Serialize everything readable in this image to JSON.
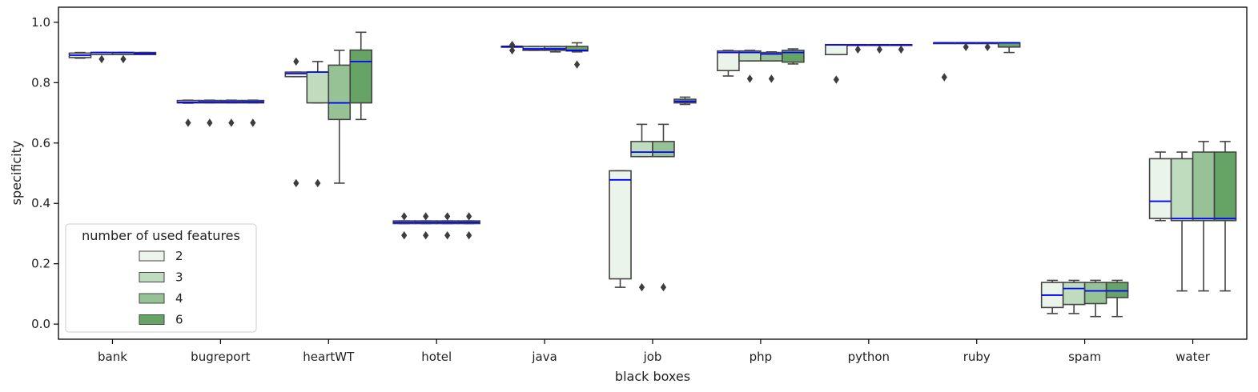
{
  "chart_data": {
    "type": "box",
    "xlabel": "black boxes",
    "ylabel": "specificity",
    "ylim": [
      -0.05,
      1.05
    ],
    "yticks": [
      "0.0",
      "0.2",
      "0.4",
      "0.6",
      "0.8",
      "1.0"
    ],
    "categories": [
      "bank",
      "bugreport",
      "heartWT",
      "hotel",
      "java",
      "job",
      "php",
      "python",
      "ruby",
      "spam",
      "water"
    ],
    "legend": {
      "title": "number of used features",
      "placement": "bottom-left",
      "entries": [
        "2",
        "3",
        "4",
        "6"
      ]
    },
    "colors": {
      "series": [
        "#ebf4eb",
        "#bfdcbf",
        "#96c296",
        "#66a466"
      ],
      "median": "#0000ff",
      "box_edge": "#444444"
    },
    "series": [
      {
        "name": "2",
        "boxes": [
          {
            "wlo": 0.881,
            "q1": 0.883,
            "med": 0.891,
            "q3": 0.898,
            "whi": 0.9,
            "outliers": []
          },
          {
            "wlo": 0.732,
            "q1": 0.733,
            "med": 0.735,
            "q3": 0.741,
            "whi": 0.742,
            "outliers": [
              0.667
            ]
          },
          {
            "wlo": 0.82,
            "q1": 0.82,
            "med": 0.83,
            "q3": 0.835,
            "whi": 0.835,
            "outliers": [
              0.87,
              0.467
            ]
          },
          {
            "wlo": 0.333,
            "q1": 0.333,
            "med": 0.337,
            "q3": 0.342,
            "whi": 0.342,
            "outliers": [
              0.357,
              0.294
            ]
          },
          {
            "wlo": 0.92,
            "q1": 0.92,
            "med": 0.92,
            "q3": 0.92,
            "whi": 0.92,
            "outliers": [
              0.925,
              0.907
            ]
          },
          {
            "wlo": 0.122,
            "q1": 0.15,
            "med": 0.478,
            "q3": 0.508,
            "whi": 0.508,
            "outliers": []
          },
          {
            "wlo": 0.822,
            "q1": 0.84,
            "med": 0.9,
            "q3": 0.905,
            "whi": 0.907,
            "outliers": []
          },
          {
            "wlo": 0.893,
            "q1": 0.893,
            "med": 0.925,
            "q3": 0.926,
            "whi": 0.926,
            "outliers": [
              0.81
            ]
          },
          {
            "wlo": 0.932,
            "q1": 0.932,
            "med": 0.932,
            "q3": 0.932,
            "whi": 0.932,
            "outliers": [
              0.818
            ]
          },
          {
            "wlo": 0.035,
            "q1": 0.055,
            "med": 0.096,
            "q3": 0.138,
            "whi": 0.145,
            "outliers": []
          },
          {
            "wlo": 0.343,
            "q1": 0.35,
            "med": 0.407,
            "q3": 0.548,
            "whi": 0.57,
            "outliers": []
          }
        ]
      },
      {
        "name": "3",
        "boxes": [
          {
            "wlo": 0.893,
            "q1": 0.893,
            "med": 0.9,
            "q3": 0.9,
            "whi": 0.9,
            "outliers": [
              0.878
            ]
          },
          {
            "wlo": 0.733,
            "q1": 0.733,
            "med": 0.736,
            "q3": 0.741,
            "whi": 0.742,
            "outliers": [
              0.667
            ]
          },
          {
            "wlo": 0.733,
            "q1": 0.733,
            "med": 0.835,
            "q3": 0.835,
            "whi": 0.87,
            "outliers": [
              0.467
            ]
          },
          {
            "wlo": 0.333,
            "q1": 0.333,
            "med": 0.337,
            "q3": 0.342,
            "whi": 0.342,
            "outliers": [
              0.357,
              0.294
            ]
          },
          {
            "wlo": 0.907,
            "q1": 0.907,
            "med": 0.912,
            "q3": 0.92,
            "whi": 0.92,
            "outliers": []
          },
          {
            "wlo": 0.555,
            "q1": 0.555,
            "med": 0.57,
            "q3": 0.605,
            "whi": 0.662,
            "outliers": [
              0.122
            ]
          },
          {
            "wlo": 0.872,
            "q1": 0.872,
            "med": 0.9,
            "q3": 0.905,
            "whi": 0.907,
            "outliers": [
              0.813
            ]
          },
          {
            "wlo": 0.925,
            "q1": 0.925,
            "med": 0.925,
            "q3": 0.926,
            "whi": 0.926,
            "outliers": [
              0.91
            ]
          },
          {
            "wlo": 0.932,
            "q1": 0.932,
            "med": 0.932,
            "q3": 0.932,
            "whi": 0.932,
            "outliers": [
              0.918
            ]
          },
          {
            "wlo": 0.035,
            "q1": 0.065,
            "med": 0.118,
            "q3": 0.138,
            "whi": 0.145,
            "outliers": []
          },
          {
            "wlo": 0.11,
            "q1": 0.343,
            "med": 0.35,
            "q3": 0.548,
            "whi": 0.57,
            "outliers": []
          }
        ]
      },
      {
        "name": "4",
        "boxes": [
          {
            "wlo": 0.893,
            "q1": 0.893,
            "med": 0.9,
            "q3": 0.9,
            "whi": 0.9,
            "outliers": [
              0.878
            ]
          },
          {
            "wlo": 0.733,
            "q1": 0.733,
            "med": 0.736,
            "q3": 0.741,
            "whi": 0.742,
            "outliers": [
              0.667
            ]
          },
          {
            "wlo": 0.467,
            "q1": 0.678,
            "med": 0.733,
            "q3": 0.858,
            "whi": 0.907,
            "outliers": []
          },
          {
            "wlo": 0.333,
            "q1": 0.333,
            "med": 0.337,
            "q3": 0.342,
            "whi": 0.342,
            "outliers": [
              0.357,
              0.294
            ]
          },
          {
            "wlo": 0.902,
            "q1": 0.907,
            "med": 0.912,
            "q3": 0.92,
            "whi": 0.92,
            "outliers": []
          },
          {
            "wlo": 0.555,
            "q1": 0.555,
            "med": 0.57,
            "q3": 0.605,
            "whi": 0.662,
            "outliers": [
              0.122
            ]
          },
          {
            "wlo": 0.872,
            "q1": 0.872,
            "med": 0.895,
            "q3": 0.9,
            "whi": 0.902,
            "outliers": [
              0.813
            ]
          },
          {
            "wlo": 0.925,
            "q1": 0.925,
            "med": 0.925,
            "q3": 0.926,
            "whi": 0.926,
            "outliers": [
              0.91
            ]
          },
          {
            "wlo": 0.932,
            "q1": 0.932,
            "med": 0.932,
            "q3": 0.932,
            "whi": 0.932,
            "outliers": [
              0.918
            ]
          },
          {
            "wlo": 0.025,
            "q1": 0.068,
            "med": 0.11,
            "q3": 0.138,
            "whi": 0.145,
            "outliers": []
          },
          {
            "wlo": 0.11,
            "q1": 0.343,
            "med": 0.35,
            "q3": 0.57,
            "whi": 0.605,
            "outliers": []
          }
        ]
      },
      {
        "name": "6",
        "boxes": [
          {
            "wlo": 0.893,
            "q1": 0.893,
            "med": 0.897,
            "q3": 0.9,
            "whi": 0.9,
            "outliers": []
          },
          {
            "wlo": 0.733,
            "q1": 0.733,
            "med": 0.736,
            "q3": 0.741,
            "whi": 0.742,
            "outliers": [
              0.667
            ]
          },
          {
            "wlo": 0.678,
            "q1": 0.733,
            "med": 0.87,
            "q3": 0.908,
            "whi": 0.967,
            "outliers": []
          },
          {
            "wlo": 0.333,
            "q1": 0.333,
            "med": 0.337,
            "q3": 0.342,
            "whi": 0.342,
            "outliers": [
              0.357,
              0.294
            ]
          },
          {
            "wlo": 0.902,
            "q1": 0.905,
            "med": 0.907,
            "q3": 0.92,
            "whi": 0.932,
            "outliers": [
              0.86
            ]
          },
          {
            "wlo": 0.728,
            "q1": 0.733,
            "med": 0.738,
            "q3": 0.745,
            "whi": 0.752,
            "outliers": []
          },
          {
            "wlo": 0.862,
            "q1": 0.868,
            "med": 0.9,
            "q3": 0.907,
            "whi": 0.912,
            "outliers": []
          },
          {
            "wlo": 0.925,
            "q1": 0.925,
            "med": 0.925,
            "q3": 0.926,
            "whi": 0.926,
            "outliers": [
              0.91
            ]
          },
          {
            "wlo": 0.9,
            "q1": 0.918,
            "med": 0.932,
            "q3": 0.932,
            "whi": 0.932,
            "outliers": []
          },
          {
            "wlo": 0.025,
            "q1": 0.088,
            "med": 0.11,
            "q3": 0.138,
            "whi": 0.145,
            "outliers": []
          },
          {
            "wlo": 0.11,
            "q1": 0.343,
            "med": 0.35,
            "q3": 0.57,
            "whi": 0.605,
            "outliers": []
          }
        ]
      }
    ]
  }
}
